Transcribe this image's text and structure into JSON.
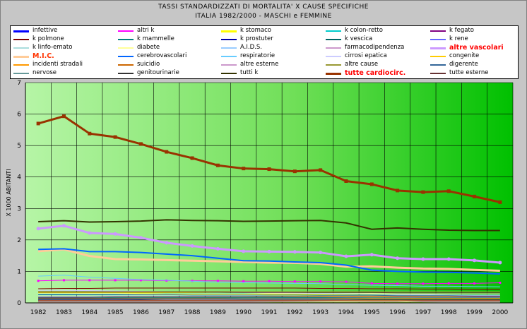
{
  "chart_data": {
    "type": "line",
    "title": "TASSI STANDARDIZZATI DI MORTALITA' X CAUSE SPECIFICHE",
    "subtitle": "ITALIA 1982/2000 - MASCHI e FEMMINE",
    "ylabel": "X 1000 ABITANTI",
    "xlabel": "",
    "ylim": [
      0,
      7
    ],
    "yticks": [
      "0",
      "1",
      "2",
      "3",
      "4",
      "5",
      "6",
      "7"
    ],
    "x": [
      "1982",
      "1983",
      "1984",
      "1985",
      "1986",
      "1987",
      "1988",
      "1989",
      "1990",
      "1991",
      "1992",
      "1993",
      "1994",
      "1995",
      "1996",
      "1997",
      "1998",
      "1999",
      "2000"
    ],
    "grid": true,
    "legend_position": "top",
    "series": [
      {
        "name": "infettive",
        "color": "#0000ff",
        "width": 3,
        "values": [
          0.07,
          0.07,
          0.07,
          0.07,
          0.06,
          0.06,
          0.06,
          0.06,
          0.06,
          0.06,
          0.06,
          0.06,
          0.06,
          0.06,
          0.06,
          0.06,
          0.06,
          0.06,
          0.06
        ]
      },
      {
        "name": "altri k",
        "color": "#ff00ff",
        "width": 1,
        "marker": "square",
        "values": [
          0.7,
          0.72,
          0.72,
          0.72,
          0.72,
          0.71,
          0.7,
          0.7,
          0.69,
          0.69,
          0.68,
          0.68,
          0.67,
          0.62,
          0.61,
          0.61,
          0.62,
          0.62,
          0.64
        ]
      },
      {
        "name": "k stomaco",
        "color": "#ffff00",
        "width": 3,
        "values": [
          0.34,
          0.34,
          0.33,
          0.32,
          0.31,
          0.3,
          0.29,
          0.28,
          0.27,
          0.26,
          0.25,
          0.24,
          0.23,
          0.22,
          0.21,
          0.2,
          0.19,
          0.18,
          0.18
        ]
      },
      {
        "name": "k colon-retto",
        "color": "#00cccc",
        "width": 1,
        "values": [
          0.28,
          0.28,
          0.29,
          0.29,
          0.29,
          0.3,
          0.3,
          0.3,
          0.3,
          0.3,
          0.3,
          0.3,
          0.3,
          0.29,
          0.29,
          0.29,
          0.28,
          0.28,
          0.28
        ]
      },
      {
        "name": "k fegato",
        "color": "#800080",
        "width": 1,
        "values": [
          0.18,
          0.18,
          0.18,
          0.19,
          0.19,
          0.19,
          0.19,
          0.19,
          0.19,
          0.19,
          0.19,
          0.19,
          0.19,
          0.19,
          0.19,
          0.19,
          0.19,
          0.19,
          0.19
        ]
      },
      {
        "name": "k polmone",
        "color": "#800000",
        "width": 1,
        "values": [
          0.45,
          0.46,
          0.46,
          0.47,
          0.47,
          0.47,
          0.47,
          0.47,
          0.47,
          0.47,
          0.47,
          0.46,
          0.46,
          0.45,
          0.45,
          0.44,
          0.44,
          0.43,
          0.43
        ]
      },
      {
        "name": "k mammelle",
        "color": "#008080",
        "width": 1,
        "values": [
          0.16,
          0.16,
          0.16,
          0.17,
          0.17,
          0.17,
          0.17,
          0.17,
          0.17,
          0.17,
          0.17,
          0.17,
          0.17,
          0.16,
          0.16,
          0.16,
          0.16,
          0.16,
          0.16
        ]
      },
      {
        "name": "k prostuter",
        "color": "#0000aa",
        "width": 1,
        "values": [
          0.1,
          0.1,
          0.1,
          0.1,
          0.1,
          0.1,
          0.1,
          0.1,
          0.1,
          0.1,
          0.1,
          0.1,
          0.1,
          0.1,
          0.1,
          0.1,
          0.1,
          0.1,
          0.1
        ]
      },
      {
        "name": "k vescica",
        "color": "#006666",
        "width": 1,
        "values": [
          0.09,
          0.09,
          0.09,
          0.09,
          0.09,
          0.09,
          0.09,
          0.09,
          0.09,
          0.09,
          0.09,
          0.09,
          0.09,
          0.09,
          0.09,
          0.09,
          0.09,
          0.09,
          0.09
        ]
      },
      {
        "name": "k rene",
        "color": "#6666ff",
        "width": 1,
        "values": [
          0.05,
          0.05,
          0.05,
          0.05,
          0.05,
          0.05,
          0.05,
          0.05,
          0.05,
          0.05,
          0.05,
          0.05,
          0.05,
          0.05,
          0.05,
          0.05,
          0.05,
          0.05,
          0.05
        ]
      },
      {
        "name": "k linfo-emato",
        "color": "#aadddd",
        "width": 1,
        "values": [
          0.22,
          0.22,
          0.22,
          0.23,
          0.23,
          0.23,
          0.23,
          0.23,
          0.23,
          0.24,
          0.24,
          0.24,
          0.24,
          0.24,
          0.24,
          0.24,
          0.24,
          0.24,
          0.24
        ]
      },
      {
        "name": "diabete",
        "color": "#ffff99",
        "width": 1,
        "values": [
          0.3,
          0.3,
          0.3,
          0.3,
          0.29,
          0.29,
          0.29,
          0.29,
          0.29,
          0.3,
          0.3,
          0.3,
          0.3,
          0.3,
          0.29,
          0.29,
          0.29,
          0.29,
          0.29
        ]
      },
      {
        "name": "A.I.D.S.",
        "color": "#99ccff",
        "width": 1,
        "values": [
          0,
          0,
          0,
          0,
          0,
          0.01,
          0.01,
          0.02,
          0.02,
          0.03,
          0.04,
          0.05,
          0.06,
          0.07,
          0.07,
          0.03,
          0.02,
          0.02,
          0.02
        ]
      },
      {
        "name": "farmacodipendenza",
        "color": "#cc99cc",
        "width": 1,
        "values": [
          0.01,
          0.01,
          0.01,
          0.01,
          0.02,
          0.02,
          0.02,
          0.02,
          0.02,
          0.03,
          0.03,
          0.03,
          0.03,
          0.03,
          0.03,
          0.03,
          0.03,
          0.03,
          0.03
        ]
      },
      {
        "name": "altre vascolari",
        "color": "#cc99ff",
        "width": 3,
        "marker": "circle",
        "values": [
          2.36,
          2.45,
          2.22,
          2.19,
          2.07,
          1.91,
          1.81,
          1.72,
          1.64,
          1.63,
          1.62,
          1.6,
          1.48,
          1.53,
          1.42,
          1.39,
          1.39,
          1.35,
          1.28
        ]
      },
      {
        "name": "M.I.C.",
        "color": "#ffcc99",
        "width": 3,
        "values": [
          1.64,
          1.7,
          1.49,
          1.39,
          1.38,
          1.36,
          1.34,
          1.32,
          1.3,
          1.28,
          1.27,
          1.24,
          1.15,
          1.16,
          1.12,
          1.09,
          1.08,
          1.05,
          1.02
        ]
      },
      {
        "name": "cerebrovascolari",
        "color": "#0066ff",
        "width": 2,
        "values": [
          1.7,
          1.72,
          1.63,
          1.63,
          1.6,
          1.55,
          1.5,
          1.42,
          1.34,
          1.33,
          1.3,
          1.28,
          1.2,
          1.04,
          1.0,
          0.98,
          0.97,
          0.95,
          0.92
        ]
      },
      {
        "name": "respiratorie",
        "color": "#66ccff",
        "width": 1,
        "values": [
          0.85,
          0.88,
          0.82,
          0.78,
          0.74,
          0.72,
          0.69,
          0.66,
          0.64,
          0.63,
          0.62,
          0.61,
          0.58,
          0.56,
          0.55,
          0.53,
          0.53,
          0.52,
          0.51
        ]
      },
      {
        "name": "cirrosi epatica",
        "color": "#ccccff",
        "width": 1,
        "values": [
          0.4,
          0.4,
          0.39,
          0.38,
          0.37,
          0.36,
          0.35,
          0.34,
          0.33,
          0.32,
          0.31,
          0.3,
          0.29,
          0.28,
          0.27,
          0.26,
          0.25,
          0.24,
          0.24
        ]
      },
      {
        "name": "congenite",
        "color": "#ffcc00",
        "width": 1,
        "values": [
          0.03,
          0.03,
          0.03,
          0.03,
          0.03,
          0.03,
          0.03,
          0.03,
          0.03,
          0.03,
          0.03,
          0.03,
          0.03,
          0.03,
          0.03,
          0.03,
          0.03,
          0.03,
          0.03
        ]
      },
      {
        "name": "incidenti stradali",
        "color": "#ff9900",
        "width": 1,
        "values": [
          0.15,
          0.15,
          0.15,
          0.15,
          0.15,
          0.15,
          0.15,
          0.15,
          0.15,
          0.15,
          0.14,
          0.14,
          0.14,
          0.14,
          0.14,
          0.14,
          0.14,
          0.14,
          0.14
        ]
      },
      {
        "name": "suicidio",
        "color": "#cc6600",
        "width": 1,
        "values": [
          0.08,
          0.08,
          0.08,
          0.08,
          0.08,
          0.08,
          0.08,
          0.08,
          0.08,
          0.08,
          0.08,
          0.08,
          0.08,
          0.08,
          0.08,
          0.08,
          0.08,
          0.08,
          0.08
        ]
      },
      {
        "name": "altre esterne",
        "color": "#cc99cc",
        "width": 1,
        "values": [
          0.12,
          0.12,
          0.12,
          0.12,
          0.12,
          0.11,
          0.11,
          0.11,
          0.11,
          0.11,
          0.11,
          0.11,
          0.11,
          0.11,
          0.11,
          0.11,
          0.11,
          0.11,
          0.11
        ]
      },
      {
        "name": "altre cause",
        "color": "#999933",
        "width": 1,
        "values": [
          0.36,
          0.36,
          0.36,
          0.36,
          0.36,
          0.36,
          0.36,
          0.36,
          0.36,
          0.36,
          0.36,
          0.36,
          0.36,
          0.36,
          0.36,
          0.36,
          0.36,
          0.36,
          0.36
        ]
      },
      {
        "name": "digerente",
        "color": "#336699",
        "width": 1,
        "values": [
          0.26,
          0.26,
          0.26,
          0.26,
          0.26,
          0.26,
          0.25,
          0.25,
          0.25,
          0.25,
          0.25,
          0.24,
          0.24,
          0.24,
          0.23,
          0.23,
          0.23,
          0.22,
          0.22
        ]
      },
      {
        "name": "nervose",
        "color": "#669999",
        "width": 1,
        "values": [
          0.13,
          0.13,
          0.13,
          0.14,
          0.14,
          0.14,
          0.14,
          0.14,
          0.15,
          0.15,
          0.15,
          0.15,
          0.16,
          0.16,
          0.16,
          0.17,
          0.17,
          0.17,
          0.17
        ]
      },
      {
        "name": "genitourinarie",
        "color": "#333333",
        "width": 1,
        "values": [
          0.14,
          0.14,
          0.14,
          0.14,
          0.13,
          0.13,
          0.13,
          0.13,
          0.12,
          0.12,
          0.12,
          0.12,
          0.12,
          0.11,
          0.11,
          0.11,
          0.11,
          0.11,
          0.11
        ]
      },
      {
        "name": "tutti k",
        "color": "#333300",
        "width": 2,
        "values": [
          2.58,
          2.61,
          2.57,
          2.58,
          2.6,
          2.64,
          2.62,
          2.61,
          2.59,
          2.6,
          2.61,
          2.62,
          2.54,
          2.34,
          2.38,
          2.34,
          2.31,
          2.3,
          2.3
        ]
      },
      {
        "name": "tutte cardiocirc.",
        "color": "#993300",
        "width": 3,
        "marker": "square",
        "values": [
          5.7,
          5.93,
          5.38,
          5.27,
          5.05,
          4.8,
          4.6,
          4.37,
          4.27,
          4.25,
          4.18,
          4.22,
          3.87,
          3.77,
          3.57,
          3.52,
          3.55,
          3.38,
          3.2
        ]
      },
      {
        "name": "tutte esterne",
        "color": "#663333",
        "width": 1,
        "values": [
          0.34,
          0.34,
          0.34,
          0.34,
          0.34,
          0.34,
          0.34,
          0.34,
          0.33,
          0.33,
          0.33,
          0.33,
          0.33,
          0.33,
          0.32,
          0.32,
          0.32,
          0.32,
          0.32
        ]
      }
    ]
  },
  "legend_emphasis": [
    "altre vascolari",
    "M.I.C.",
    "tutte cardiocirc."
  ],
  "colors": {
    "plot_bg_light": "#b6f5a6",
    "plot_bg_dark": "#00c000",
    "frame_bg": "#c6c6c6",
    "grid": "#000000"
  }
}
